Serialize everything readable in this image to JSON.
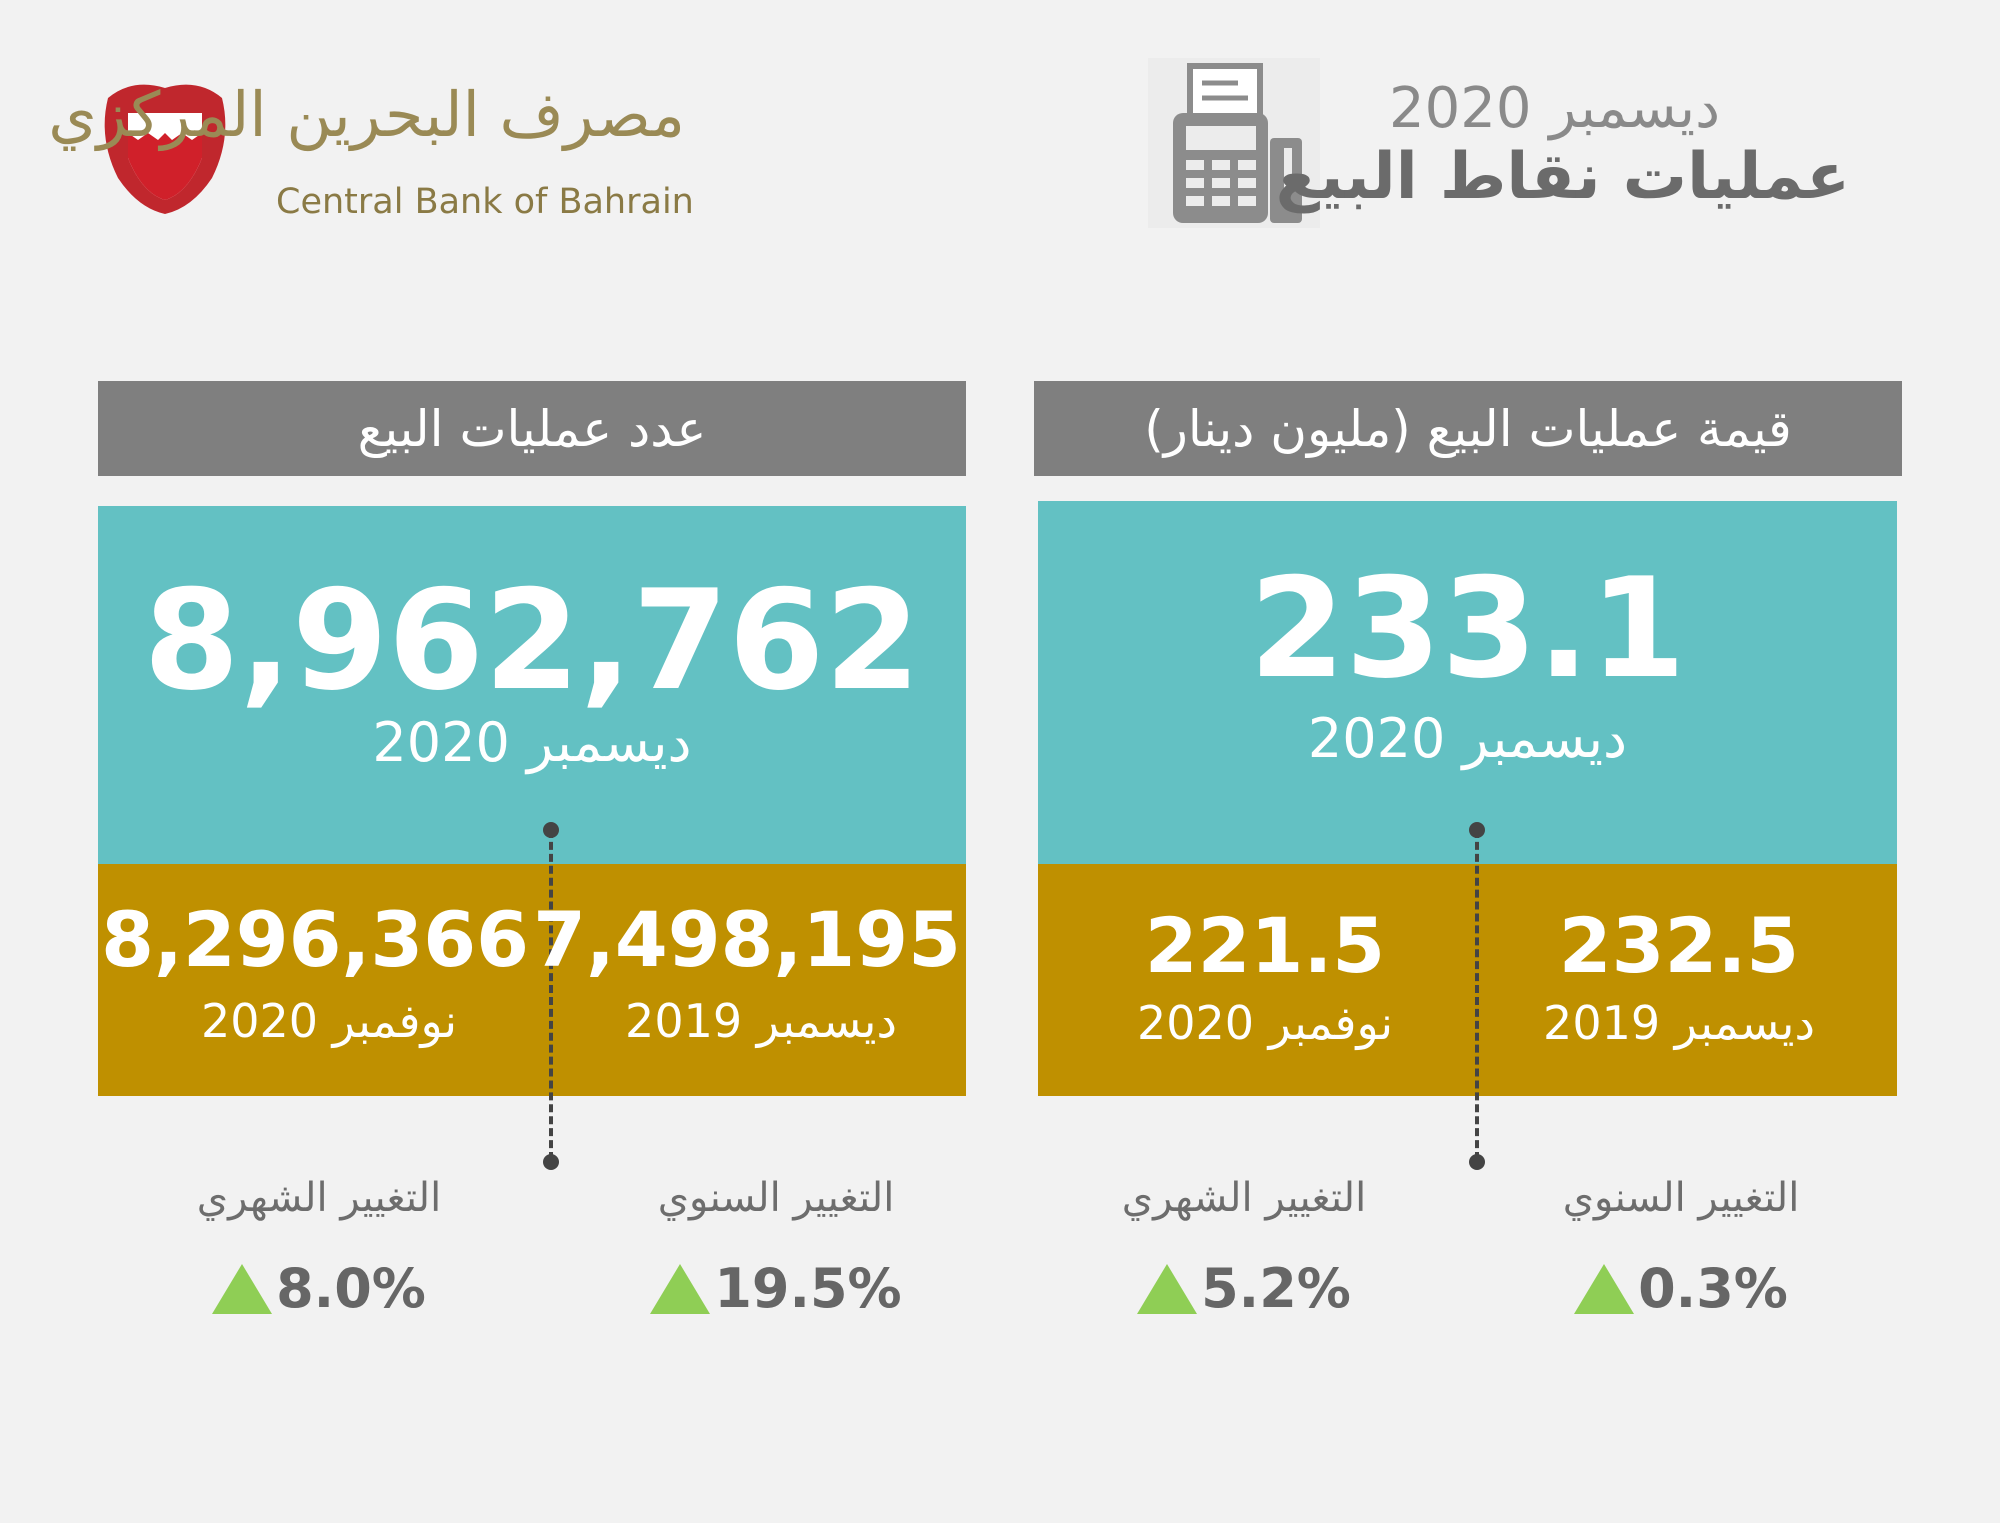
{
  "header": {
    "date": "ديسمبر 2020",
    "title": "عمليات نقاط البيع",
    "bank_ar": "مصرف البحرين المركزي",
    "bank_en": "Central Bank of Bahrain"
  },
  "panels": [
    {
      "heading": "قيمة عمليات البيع (مليون دينار)",
      "main_value": "233.1",
      "main_period": "ديسمبر 2020",
      "comparisons": [
        {
          "value": "232.5",
          "period": "ديسمبر 2019"
        },
        {
          "value": "221.5",
          "period": "نوفمبر 2020"
        }
      ],
      "changes": [
        {
          "label": "التغيير السنوي",
          "value": "0.3%"
        },
        {
          "label": "التغيير الشهري",
          "value": "5.2%"
        }
      ]
    },
    {
      "heading": "عدد عمليات البيع",
      "main_value": "8,962,762",
      "main_period": "ديسمبر 2020",
      "comparisons": [
        {
          "value": "7,498,195",
          "period": "ديسمبر 2019"
        },
        {
          "value": "8,296,366",
          "period": "نوفمبر 2020"
        }
      ],
      "changes": [
        {
          "label": "التغيير السنوي",
          "value": "19.5%"
        },
        {
          "label": "التغيير الشهري",
          "value": "8.0%"
        }
      ]
    }
  ]
}
